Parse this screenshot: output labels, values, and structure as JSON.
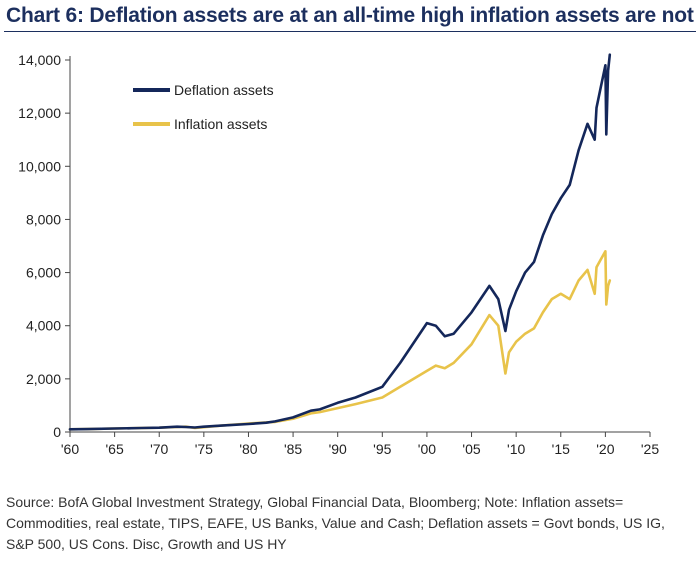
{
  "title": "Chart 6: Deflation assets are at an all-time high inflation assets are not",
  "source": [
    "Source: BofA Global Investment Strategy, Global Financial Data, Bloomberg; Note: Inflation assets=",
    "Commodities, real estate, TIPS, EAFE, US Banks, Value and Cash; Deflation assets = Govt bonds, US IG,",
    "S&P 500, US Cons. Disc, Growth and US HY"
  ],
  "chart_data": {
    "type": "line",
    "title": "Chart 6: Deflation assets are at an all-time high inflation assets are not",
    "xlabel": "",
    "ylabel": "",
    "xlim": [
      1960,
      2025
    ],
    "ylim": [
      0,
      14000
    ],
    "x_ticks": [
      1960,
      1965,
      1970,
      1975,
      1980,
      1985,
      1990,
      1995,
      2000,
      2005,
      2010,
      2015,
      2020,
      2025
    ],
    "x_tick_labels": [
      "'60",
      "'65",
      "'70",
      "'75",
      "'80",
      "'85",
      "'90",
      "'95",
      "'00",
      "'05",
      "'10",
      "'15",
      "'20",
      "'25"
    ],
    "y_ticks": [
      0,
      2000,
      4000,
      6000,
      8000,
      10000,
      12000,
      14000
    ],
    "y_tick_labels": [
      "0",
      "2,000",
      "4,000",
      "6,000",
      "8,000",
      "10,000",
      "12,000",
      "14,000"
    ],
    "legend_position": "top-left",
    "grid": false,
    "series": [
      {
        "name": "Deflation assets",
        "color": "#14275a",
        "x": [
          1960,
          1962,
          1965,
          1968,
          1970,
          1972,
          1973,
          1974,
          1975,
          1977,
          1980,
          1982,
          1983,
          1985,
          1987,
          1988,
          1990,
          1992,
          1995,
          1997,
          1998,
          2000,
          2001,
          2002,
          2003,
          2005,
          2007,
          2008,
          2008.8,
          2009.2,
          2010,
          2011,
          2012,
          2013,
          2014,
          2015,
          2016,
          2017,
          2018,
          2018.8,
          2019,
          2019.5,
          2020.0,
          2020.1,
          2020.3,
          2020.5
        ],
        "values": [
          100,
          110,
          130,
          150,
          160,
          200,
          190,
          170,
          200,
          240,
          300,
          350,
          400,
          550,
          800,
          850,
          1100,
          1300,
          1700,
          2600,
          3100,
          4100,
          4000,
          3600,
          3700,
          4500,
          5500,
          5000,
          3800,
          4600,
          5300,
          6000,
          6400,
          7400,
          8200,
          8800,
          9300,
          10600,
          11600,
          11000,
          12200,
          13000,
          13800,
          11200,
          13600,
          14200
        ]
      },
      {
        "name": "Inflation assets",
        "color": "#e8c34a",
        "x": [
          1960,
          1962,
          1965,
          1968,
          1970,
          1972,
          1973,
          1974,
          1975,
          1977,
          1980,
          1982,
          1983,
          1985,
          1987,
          1988,
          1990,
          1992,
          1995,
          1997,
          1998,
          2000,
          2001,
          2002,
          2003,
          2005,
          2007,
          2008,
          2008.8,
          2009.2,
          2010,
          2011,
          2012,
          2013,
          2014,
          2015,
          2016,
          2017,
          2018,
          2018.8,
          2019,
          2019.5,
          2020.0,
          2020.1,
          2020.3,
          2020.5
        ],
        "values": [
          100,
          110,
          130,
          150,
          160,
          190,
          200,
          150,
          180,
          240,
          320,
          360,
          380,
          500,
          700,
          750,
          900,
          1050,
          1300,
          1700,
          1900,
          2300,
          2500,
          2400,
          2600,
          3300,
          4400,
          4000,
          2200,
          3000,
          3400,
          3700,
          3900,
          4500,
          5000,
          5200,
          5000,
          5700,
          6100,
          5200,
          6200,
          6500,
          6800,
          4800,
          5500,
          5700
        ]
      }
    ]
  }
}
